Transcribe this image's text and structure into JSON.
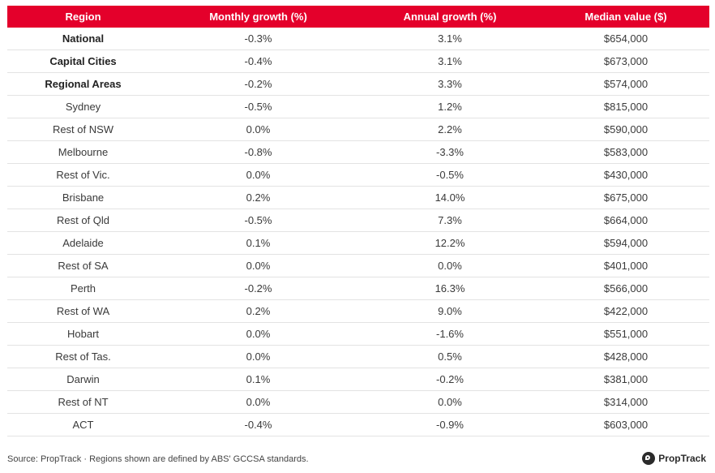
{
  "table": {
    "headers": [
      "Region",
      "Monthly growth (%)",
      "Annual growth (%)",
      "Median value ($)"
    ],
    "rows": [
      {
        "region": "National",
        "monthly": "-0.3%",
        "annual": "3.1%",
        "median": "$654,000",
        "bold": true
      },
      {
        "region": "Capital Cities",
        "monthly": "-0.4%",
        "annual": "3.1%",
        "median": "$673,000",
        "bold": true
      },
      {
        "region": "Regional Areas",
        "monthly": "-0.2%",
        "annual": "3.3%",
        "median": "$574,000",
        "bold": true
      },
      {
        "region": "Sydney",
        "monthly": "-0.5%",
        "annual": "1.2%",
        "median": "$815,000",
        "bold": false
      },
      {
        "region": "Rest of NSW",
        "monthly": "0.0%",
        "annual": "2.2%",
        "median": "$590,000",
        "bold": false
      },
      {
        "region": "Melbourne",
        "monthly": "-0.8%",
        "annual": "-3.3%",
        "median": "$583,000",
        "bold": false
      },
      {
        "region": "Rest of Vic.",
        "monthly": "0.0%",
        "annual": "-0.5%",
        "median": "$430,000",
        "bold": false
      },
      {
        "region": "Brisbane",
        "monthly": "0.2%",
        "annual": "14.0%",
        "median": "$675,000",
        "bold": false
      },
      {
        "region": "Rest of Qld",
        "monthly": "-0.5%",
        "annual": "7.3%",
        "median": "$664,000",
        "bold": false
      },
      {
        "region": "Adelaide",
        "monthly": "0.1%",
        "annual": "12.2%",
        "median": "$594,000",
        "bold": false
      },
      {
        "region": "Rest of SA",
        "monthly": "0.0%",
        "annual": "0.0%",
        "median": "$401,000",
        "bold": false
      },
      {
        "region": "Perth",
        "monthly": "-0.2%",
        "annual": "16.3%",
        "median": "$566,000",
        "bold": false
      },
      {
        "region": "Rest of WA",
        "monthly": "0.2%",
        "annual": "9.0%",
        "median": "$422,000",
        "bold": false
      },
      {
        "region": "Hobart",
        "monthly": "0.0%",
        "annual": "-1.6%",
        "median": "$551,000",
        "bold": false
      },
      {
        "region": "Rest of Tas.",
        "monthly": "0.0%",
        "annual": "0.5%",
        "median": "$428,000",
        "bold": false
      },
      {
        "region": "Darwin",
        "monthly": "0.1%",
        "annual": "-0.2%",
        "median": "$381,000",
        "bold": false
      },
      {
        "region": "Rest of NT",
        "monthly": "0.0%",
        "annual": "0.0%",
        "median": "$314,000",
        "bold": false
      },
      {
        "region": "ACT",
        "monthly": "-0.4%",
        "annual": "-0.9%",
        "median": "$603,000",
        "bold": false
      }
    ]
  },
  "footer": {
    "source": "Source: PropTrack · Regions shown are defined by ABS' GCCSA standards."
  },
  "logo": {
    "text": "PropTrack",
    "icon": "proptrack-logo-icon"
  },
  "colors": {
    "header_bg": "#e4002b",
    "header_text": "#ffffff",
    "row_border": "#e3e3e3"
  }
}
